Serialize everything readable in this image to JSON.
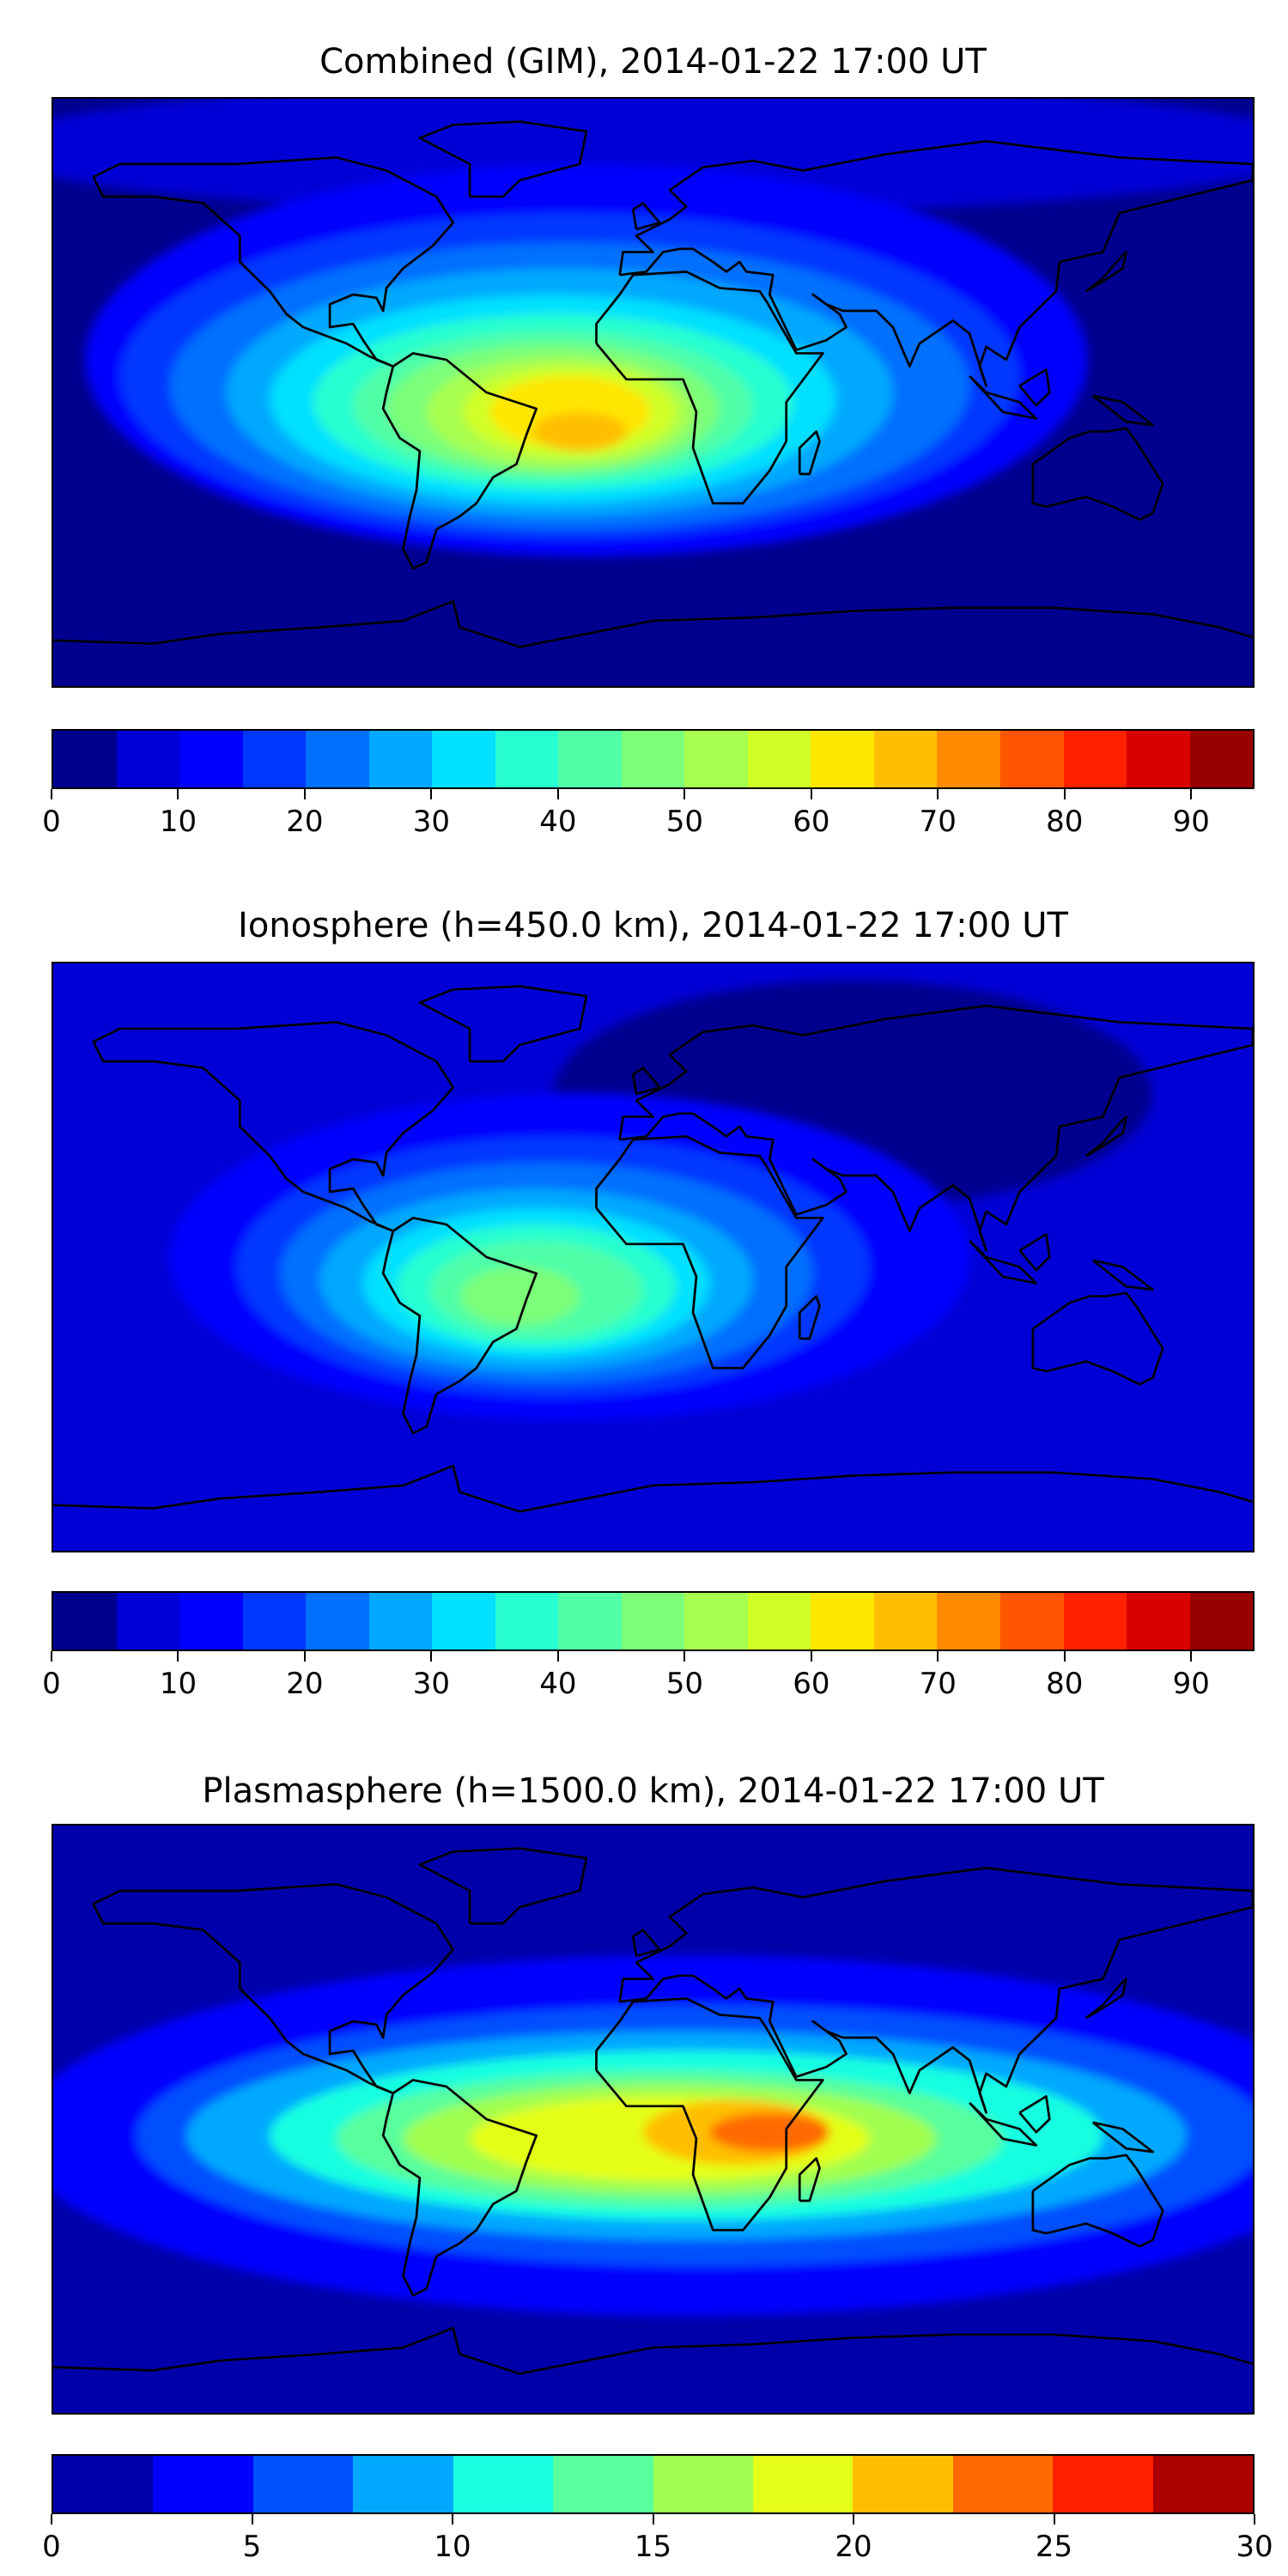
{
  "chart_data": [
    {
      "type": "heatmap",
      "title": "Combined (GIM), 2014-01-22 17:00 UT",
      "colorbar": {
        "levels": [
          0,
          5,
          10,
          15,
          20,
          25,
          30,
          35,
          40,
          45,
          50,
          55,
          60,
          65,
          70,
          75,
          80,
          85,
          90,
          95
        ],
        "colors": [
          "#00008f",
          "#0000d6",
          "#0000ff",
          "#0038ff",
          "#0070ff",
          "#00a8ff",
          "#00e0ff",
          "#28ffd0",
          "#50ffa8",
          "#7cff79",
          "#a8ff50",
          "#d0ff28",
          "#ffe600",
          "#ffbf00",
          "#ff8a00",
          "#ff5500",
          "#ff2000",
          "#d90000",
          "#990000"
        ],
        "ticks": [
          "0",
          "10",
          "20",
          "30",
          "40",
          "50",
          "60",
          "70",
          "80",
          "90"
        ],
        "tick_values": [
          0,
          10,
          20,
          30,
          40,
          50,
          60,
          70,
          80,
          90
        ],
        "range": [
          0,
          95
        ]
      },
      "max_region": "South America / South Atlantic, ~65-70"
    },
    {
      "type": "heatmap",
      "title": "Ionosphere  (h=450.0 km), 2014-01-22 17:00 UT",
      "colorbar": {
        "levels": [
          0,
          5,
          10,
          15,
          20,
          25,
          30,
          35,
          40,
          45,
          50,
          55,
          60,
          65,
          70,
          75,
          80,
          85,
          90,
          95
        ],
        "colors": [
          "#00008f",
          "#0000d6",
          "#0000ff",
          "#0038ff",
          "#0070ff",
          "#00a8ff",
          "#00e0ff",
          "#28ffd0",
          "#50ffa8",
          "#7cff79",
          "#a8ff50",
          "#d0ff28",
          "#ffe600",
          "#ffbf00",
          "#ff8a00",
          "#ff5500",
          "#ff2000",
          "#d90000",
          "#990000"
        ],
        "ticks": [
          "0",
          "10",
          "20",
          "30",
          "40",
          "50",
          "60",
          "70",
          "80",
          "90"
        ],
        "tick_values": [
          0,
          10,
          20,
          30,
          40,
          50,
          60,
          70,
          80,
          90
        ],
        "range": [
          0,
          95
        ]
      },
      "max_region": "South America, ~50-55"
    },
    {
      "type": "heatmap",
      "title": "Plasmasphere (h=1500.0 km), 2014-01-22 17:00 UT",
      "colorbar": {
        "levels": [
          0,
          2.5,
          5,
          7.5,
          10,
          12.5,
          15,
          17.5,
          20,
          22.5,
          25,
          27.5,
          30
        ],
        "colors": [
          "#0000aa",
          "#0000ff",
          "#0050ff",
          "#00a8ff",
          "#18ffe0",
          "#58ff9c",
          "#a0ff50",
          "#e4ff18",
          "#ffbf00",
          "#ff6a00",
          "#ff2000",
          "#aa0000"
        ],
        "ticks": [
          "0",
          "5",
          "10",
          "15",
          "20",
          "25",
          "30"
        ],
        "tick_values": [
          0,
          5,
          10,
          15,
          20,
          25,
          30
        ],
        "range": [
          0,
          30
        ]
      },
      "max_region": "East Africa, ~22.5-25"
    }
  ]
}
